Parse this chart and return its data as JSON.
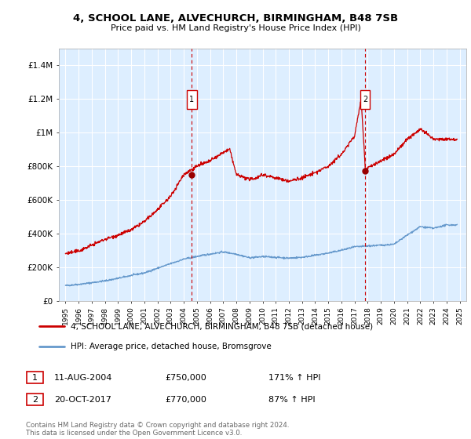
{
  "title1": "4, SCHOOL LANE, ALVECHURCH, BIRMINGHAM, B48 7SB",
  "title2": "Price paid vs. HM Land Registry's House Price Index (HPI)",
  "ylim": [
    0,
    1500000
  ],
  "yticks": [
    0,
    200000,
    400000,
    600000,
    800000,
    1000000,
    1200000,
    1400000
  ],
  "ytick_labels": [
    "£0",
    "£200K",
    "£400K",
    "£600K",
    "£800K",
    "£1M",
    "£1.2M",
    "£1.4M"
  ],
  "sale1_date": 2004.62,
  "sale1_price": 750000,
  "sale1_label": "1",
  "sale2_date": 2017.8,
  "sale2_price": 770000,
  "sale2_label": "2",
  "line_color_property": "#cc0000",
  "line_color_hpi": "#6699cc",
  "bg_color": "#ddeeff",
  "grid_color": "#ffffff",
  "legend_label_property": "4, SCHOOL LANE, ALVECHURCH, BIRMINGHAM, B48 7SB (detached house)",
  "legend_label_hpi": "HPI: Average price, detached house, Bromsgrove",
  "footnote": "Contains HM Land Registry data © Crown copyright and database right 2024.\nThis data is licensed under the Open Government Licence v3.0.",
  "xlim_start": 1994.5,
  "xlim_end": 2025.5,
  "hpi_years": [
    1995,
    1996,
    1997,
    1998,
    1999,
    2000,
    2001,
    2002,
    2003,
    2004,
    2005,
    2006,
    2007,
    2008,
    2009,
    2010,
    2011,
    2012,
    2013,
    2014,
    2015,
    2016,
    2017,
    2018,
    2019,
    2020,
    2021,
    2022,
    2023,
    2024
  ],
  "hpi_values": [
    90000,
    97000,
    107000,
    118000,
    133000,
    150000,
    165000,
    193000,
    220000,
    247000,
    263000,
    277000,
    290000,
    277000,
    255000,
    262000,
    258000,
    253000,
    258000,
    270000,
    283000,
    300000,
    320000,
    325000,
    330000,
    335000,
    390000,
    440000,
    430000,
    450000
  ],
  "prop_years": [
    1995,
    1996,
    1997,
    1998,
    1999,
    2000,
    2001,
    2002,
    2003,
    2004,
    2005,
    2006,
    2007,
    2007.5,
    2008,
    2009,
    2009.5,
    2010,
    2011,
    2012,
    2013,
    2014,
    2015,
    2016,
    2017,
    2017.5,
    2017.83,
    2018,
    2019,
    2020,
    2021,
    2022,
    2023,
    2024
  ],
  "prop_values": [
    280000,
    295000,
    330000,
    365000,
    390000,
    420000,
    470000,
    540000,
    620000,
    750000,
    800000,
    830000,
    880000,
    900000,
    750000,
    720000,
    730000,
    750000,
    730000,
    710000,
    730000,
    760000,
    800000,
    870000,
    980000,
    1200000,
    770000,
    790000,
    830000,
    870000,
    960000,
    1020000,
    960000,
    960000
  ]
}
